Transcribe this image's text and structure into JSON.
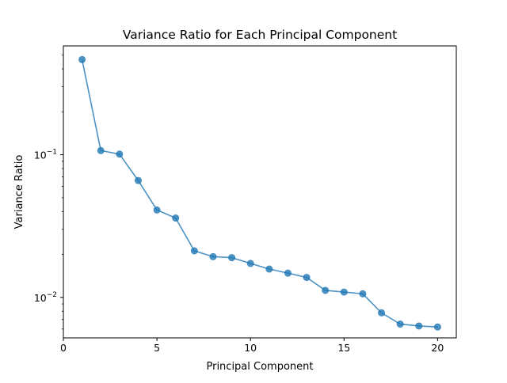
{
  "chart_data": {
    "type": "line",
    "title": "Variance Ratio for Each Principal Component",
    "xlabel": "Principal Component",
    "ylabel": "Variance Ratio",
    "xlim": [
      0,
      21
    ],
    "ylim": [
      0.0052,
      0.58
    ],
    "yscale": "log",
    "grid": false,
    "legend": "none",
    "marker": "circle",
    "x_ticks": [
      0,
      5,
      10,
      15,
      20
    ],
    "y_ticks": [
      {
        "value": 0.1,
        "base": "10",
        "exponent": "−1"
      },
      {
        "value": 0.01,
        "base": "10",
        "exponent": "−2"
      }
    ],
    "series": [
      {
        "color": "#1f77b4",
        "x": [
          1,
          2,
          3,
          4,
          5,
          6,
          7,
          8,
          9,
          10,
          11,
          12,
          13,
          14,
          15,
          16,
          17,
          18,
          19,
          20
        ],
        "y": [
          0.465,
          0.107,
          0.101,
          0.066,
          0.041,
          0.036,
          0.0212,
          0.0193,
          0.019,
          0.0173,
          0.0158,
          0.0148,
          0.0138,
          0.0112,
          0.0109,
          0.0106,
          0.0078,
          0.0065,
          0.0063,
          0.0062
        ]
      }
    ]
  }
}
